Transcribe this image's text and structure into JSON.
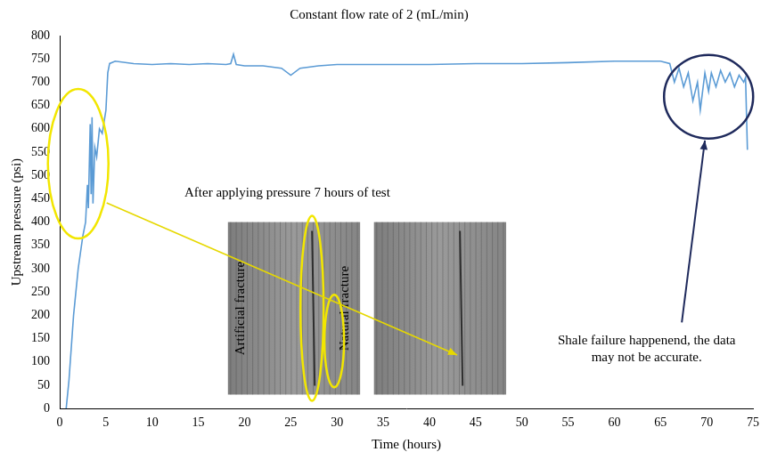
{
  "chart_data": {
    "type": "line",
    "title": "Constant flow rate of 2 (mL/min)",
    "x_label": "Time (hours)",
    "y_label": "Upstream pressure (psi)",
    "x": [
      0.7,
      1.0,
      1.5,
      2.0,
      2.5,
      2.8,
      3.0,
      3.1,
      3.3,
      3.4,
      3.5,
      3.6,
      3.8,
      4.0,
      4.3,
      4.6,
      5.0,
      5.2,
      5.4,
      6.0,
      8.0,
      10.0,
      12.0,
      14.0,
      16.0,
      18.0,
      18.5,
      18.8,
      19.1,
      20.0,
      22.0,
      24.0,
      25.0,
      26.0,
      28.0,
      30.0,
      35.0,
      40.0,
      45.0,
      50.0,
      55.0,
      60.0,
      65.0,
      66.0,
      66.5,
      67.0,
      67.5,
      68.0,
      68.5,
      69.0,
      69.3,
      69.8,
      70.2,
      70.5,
      71.0,
      71.5,
      72.0,
      72.5,
      73.0,
      73.5,
      74.0,
      74.2,
      74.4
    ],
    "values": [
      0,
      60,
      200,
      300,
      370,
      400,
      480,
      430,
      610,
      460,
      625,
      440,
      560,
      540,
      600,
      590,
      640,
      720,
      740,
      745,
      740,
      738,
      740,
      738,
      740,
      738,
      740,
      760,
      738,
      735,
      735,
      730,
      715,
      730,
      735,
      738,
      738,
      738,
      740,
      740,
      742,
      745,
      745,
      740,
      700,
      730,
      690,
      720,
      660,
      700,
      640,
      720,
      680,
      720,
      690,
      725,
      700,
      720,
      690,
      715,
      700,
      710,
      555
    ],
    "color": "#5b9bd5",
    "xlim": [
      0,
      75
    ],
    "xticks": [
      0,
      5,
      10,
      15,
      20,
      25,
      30,
      35,
      40,
      45,
      50,
      55,
      60,
      65,
      70,
      75
    ],
    "ylim": [
      0,
      800
    ],
    "yticks": [
      0,
      50,
      100,
      150,
      200,
      250,
      300,
      350,
      400,
      450,
      500,
      550,
      600,
      650,
      700,
      750,
      800
    ],
    "grid": false,
    "annotations": [
      "After applying pressure 7 hours of test",
      "Shale failure happenend, the data may not be accurate.",
      "Artificial fracture",
      "Natural fracture"
    ]
  }
}
